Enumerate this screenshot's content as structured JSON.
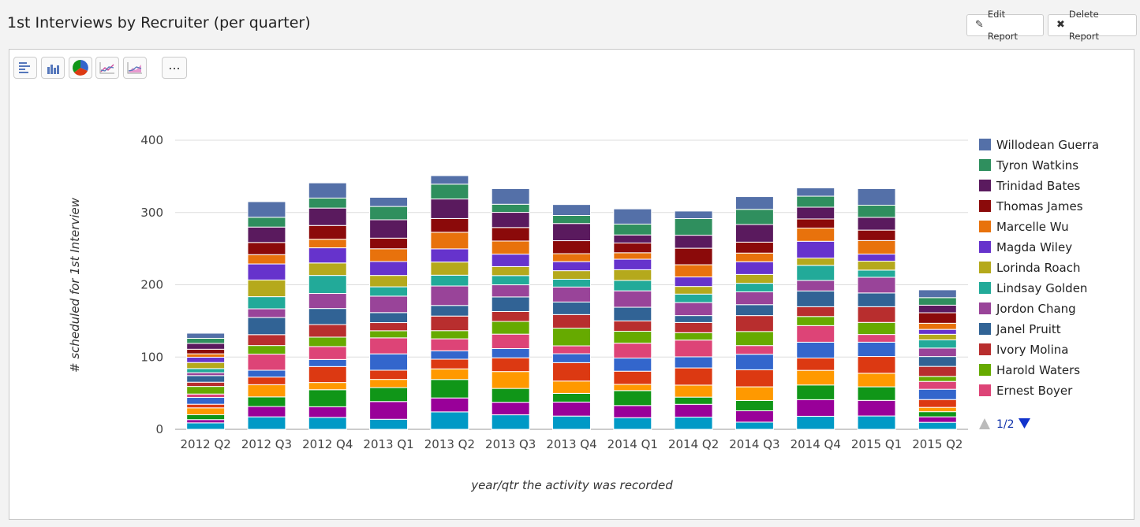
{
  "header": {
    "title": "1st Interviews by Recruiter (per quarter)",
    "edit_label": "Edit Report",
    "delete_label": "Delete Report"
  },
  "toolbar": {
    "buttons": [
      "horizontal-bar-chart-icon",
      "column-chart-icon",
      "pie-chart-icon",
      "line-chart-icon",
      "area-chart-icon"
    ],
    "more_label": "..."
  },
  "legend": {
    "pager": "1/2"
  },
  "chart_data": {
    "type": "bar",
    "stacked": true,
    "xlabel": "year/qtr the activity was recorded",
    "ylabel": "# scheduled for 1st Interview",
    "ylim": [
      0,
      400
    ],
    "yticks": [
      0,
      100,
      200,
      300,
      400
    ],
    "grid": true,
    "legend_position": "right",
    "categories": [
      "2012 Q2",
      "2012 Q3",
      "2012 Q4",
      "2013 Q1",
      "2013 Q2",
      "2013 Q3",
      "2013 Q4",
      "2014 Q1",
      "2014 Q2",
      "2014 Q3",
      "2014 Q4",
      "2015 Q1",
      "2015 Q2"
    ],
    "totals": [
      133,
      315,
      341,
      321,
      351,
      333,
      311,
      305,
      302,
      322,
      334,
      333,
      193
    ],
    "visible_series": [
      {
        "name": "Willodean Guerra",
        "color": "#5470a8"
      },
      {
        "name": "Tyron Watkins",
        "color": "#2f8f5e"
      },
      {
        "name": "Trinidad Bates",
        "color": "#5a1a5e"
      },
      {
        "name": "Thomas James",
        "color": "#8b0a0a"
      },
      {
        "name": "Marcelle Wu",
        "color": "#e8720c"
      },
      {
        "name": "Magda Wiley",
        "color": "#6633cc"
      },
      {
        "name": "Lorinda Roach",
        "color": "#b5a91c"
      },
      {
        "name": "Lindsay Golden",
        "color": "#22aa99"
      },
      {
        "name": "Jordon Chang",
        "color": "#994499"
      },
      {
        "name": "Janel Pruitt",
        "color": "#316395"
      },
      {
        "name": "Ivory Molina",
        "color": "#b82e2e"
      },
      {
        "name": "Harold Waters",
        "color": "#66aa00"
      },
      {
        "name": "Ernest Boyer",
        "color": "#dd4477"
      }
    ],
    "other_colors": [
      "#0099c6",
      "#990099",
      "#109618",
      "#ff9900",
      "#dc3912",
      "#3366cc"
    ]
  }
}
